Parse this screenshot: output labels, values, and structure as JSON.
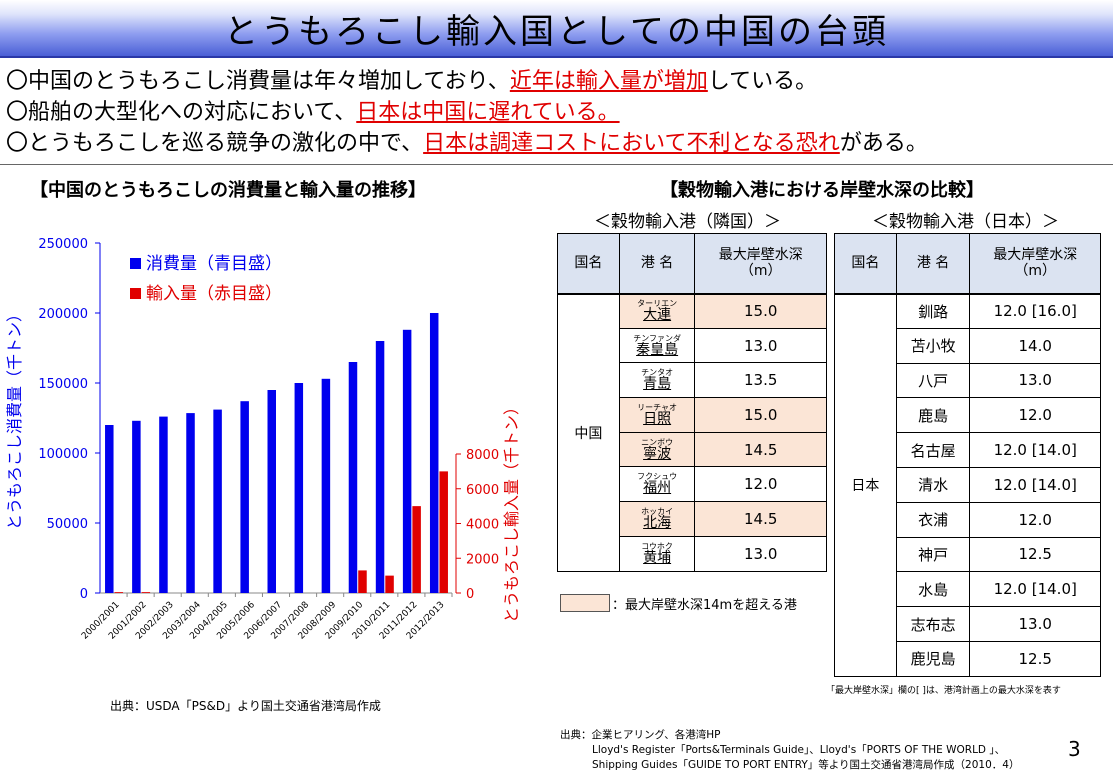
{
  "title": "とうもろこし輸入国としての中国の台頭",
  "bullets": [
    {
      "before": "〇中国のとうもろこし消費量は年々増加しており、",
      "highlight": "近年は輸入量が増加",
      "after": "している。"
    },
    {
      "before": "〇船舶の大型化への対応において、",
      "highlight": "日本は中国に遅れている。",
      "after": ""
    },
    {
      "before": "〇とうもろこしを巡る競争の激化の中で、",
      "highlight": "日本は調達コストにおいて不利となる恐れ",
      "after": "がある。"
    }
  ],
  "left_section_title": "【中国のとうもろこしの消費量と輸入量の推移】",
  "right_section_title": "【穀物輸入港における岸壁水深の比較】",
  "colors": {
    "consumption": "#0000ee",
    "imports": "#e00000",
    "highlight_cell": "#fbe5d6",
    "header_cell": "#dbe3f1"
  },
  "chart_data": {
    "type": "bar",
    "categories": [
      "2000/2001",
      "2001/2002",
      "2002/2003",
      "2003/2004",
      "2004/2005",
      "2005/2006",
      "2006/2007",
      "2007/2008",
      "2008/2009",
      "2009/2010",
      "2010/2011",
      "2011/2012",
      "2012/2013"
    ],
    "series": [
      {
        "name": "消費量（青目盛）",
        "axis": "left",
        "color": "#0000ee",
        "values": [
          120000,
          123000,
          126000,
          128500,
          131000,
          137000,
          145000,
          150000,
          153000,
          165000,
          180000,
          188000,
          200000
        ]
      },
      {
        "name": "輸入量（赤目盛）",
        "axis": "right",
        "color": "#e00000",
        "values": [
          50,
          50,
          0,
          0,
          0,
          0,
          0,
          0,
          0,
          1300,
          1000,
          5000,
          7000
        ]
      }
    ],
    "left_axis": {
      "label": "とうもろこし消費量（千トン）",
      "ylim": [
        0,
        250000
      ],
      "ticks": [
        "0",
        "50000",
        "100000",
        "150000",
        "200000",
        "250000"
      ]
    },
    "right_axis": {
      "label": "とうもろこし輸入量（千トン）",
      "ylim": [
        0,
        8000
      ],
      "ticks": [
        "0",
        "2000",
        "4000",
        "6000",
        "8000"
      ]
    },
    "legend": [
      "消費量（青目盛）",
      "輸入量（赤目盛）"
    ],
    "legend_placement": "top-left"
  },
  "source_left": "出典：USDA「PS&D」より国土交通省港湾局作成",
  "table_neighbor": {
    "subtitle": "＜穀物輸入港（隣国）＞",
    "headers": {
      "country": "国名",
      "port": "港 名",
      "depth_line1": "最大岸壁水深",
      "depth_line2": "（m）"
    },
    "country": "中国",
    "rows": [
      {
        "ruby": "ターリエン",
        "name": "大連",
        "depth": "15.0"
      },
      {
        "ruby": "チンファンダ",
        "name": "秦皇島",
        "depth": "13.0"
      },
      {
        "ruby": "チンタオ",
        "name": "青島",
        "depth": "13.5"
      },
      {
        "ruby": "リーチャオ",
        "name": "日照",
        "depth": "15.0"
      },
      {
        "ruby": "ニンボウ",
        "name": "寧波",
        "depth": "14.5"
      },
      {
        "ruby": "フクシュウ",
        "name": "福州",
        "depth": "12.0"
      },
      {
        "ruby": "ホッカイ",
        "name": "北海",
        "depth": "14.5"
      },
      {
        "ruby": "コウホク",
        "name": "黄埔",
        "depth": "13.0"
      }
    ]
  },
  "table_japan": {
    "subtitle": "＜穀物輸入港（日本）＞",
    "headers": {
      "country": "国名",
      "port": "港 名",
      "depth_line1": "最大岸壁水深",
      "depth_line2": "（m）"
    },
    "country": "日本",
    "rows": [
      {
        "name": "釧路",
        "depth": "12.0 [16.0]"
      },
      {
        "name": "苫小牧",
        "depth": "14.0"
      },
      {
        "name": "八戸",
        "depth": "13.0"
      },
      {
        "name": "鹿島",
        "depth": "12.0"
      },
      {
        "name": "名古屋",
        "depth": "12.0 [14.0]"
      },
      {
        "name": "清水",
        "depth": "12.0 [14.0]"
      },
      {
        "name": "衣浦",
        "depth": "12.0"
      },
      {
        "name": "神戸",
        "depth": "12.5"
      },
      {
        "name": "水島",
        "depth": "12.0 [14.0]"
      },
      {
        "name": "志布志",
        "depth": "13.0"
      },
      {
        "name": "鹿児島",
        "depth": "12.5"
      }
    ]
  },
  "legend_highlight_text": "：最大岸壁水深14mを超える港",
  "note_japan": "「最大岸壁水深」欄の[ ]は、港湾計画上の最大水深を表す",
  "source_right": [
    "出典：企業ヒアリング、各港湾HP",
    "Lloyd's Register「Ports&Terminals Guide」、Lloyd's「PORTS OF THE WORLD 」、",
    "Shipping Guides「GUIDE TO PORT ENTRY」等より国土交通省港湾局作成（2010．4）"
  ],
  "page_number": "3"
}
